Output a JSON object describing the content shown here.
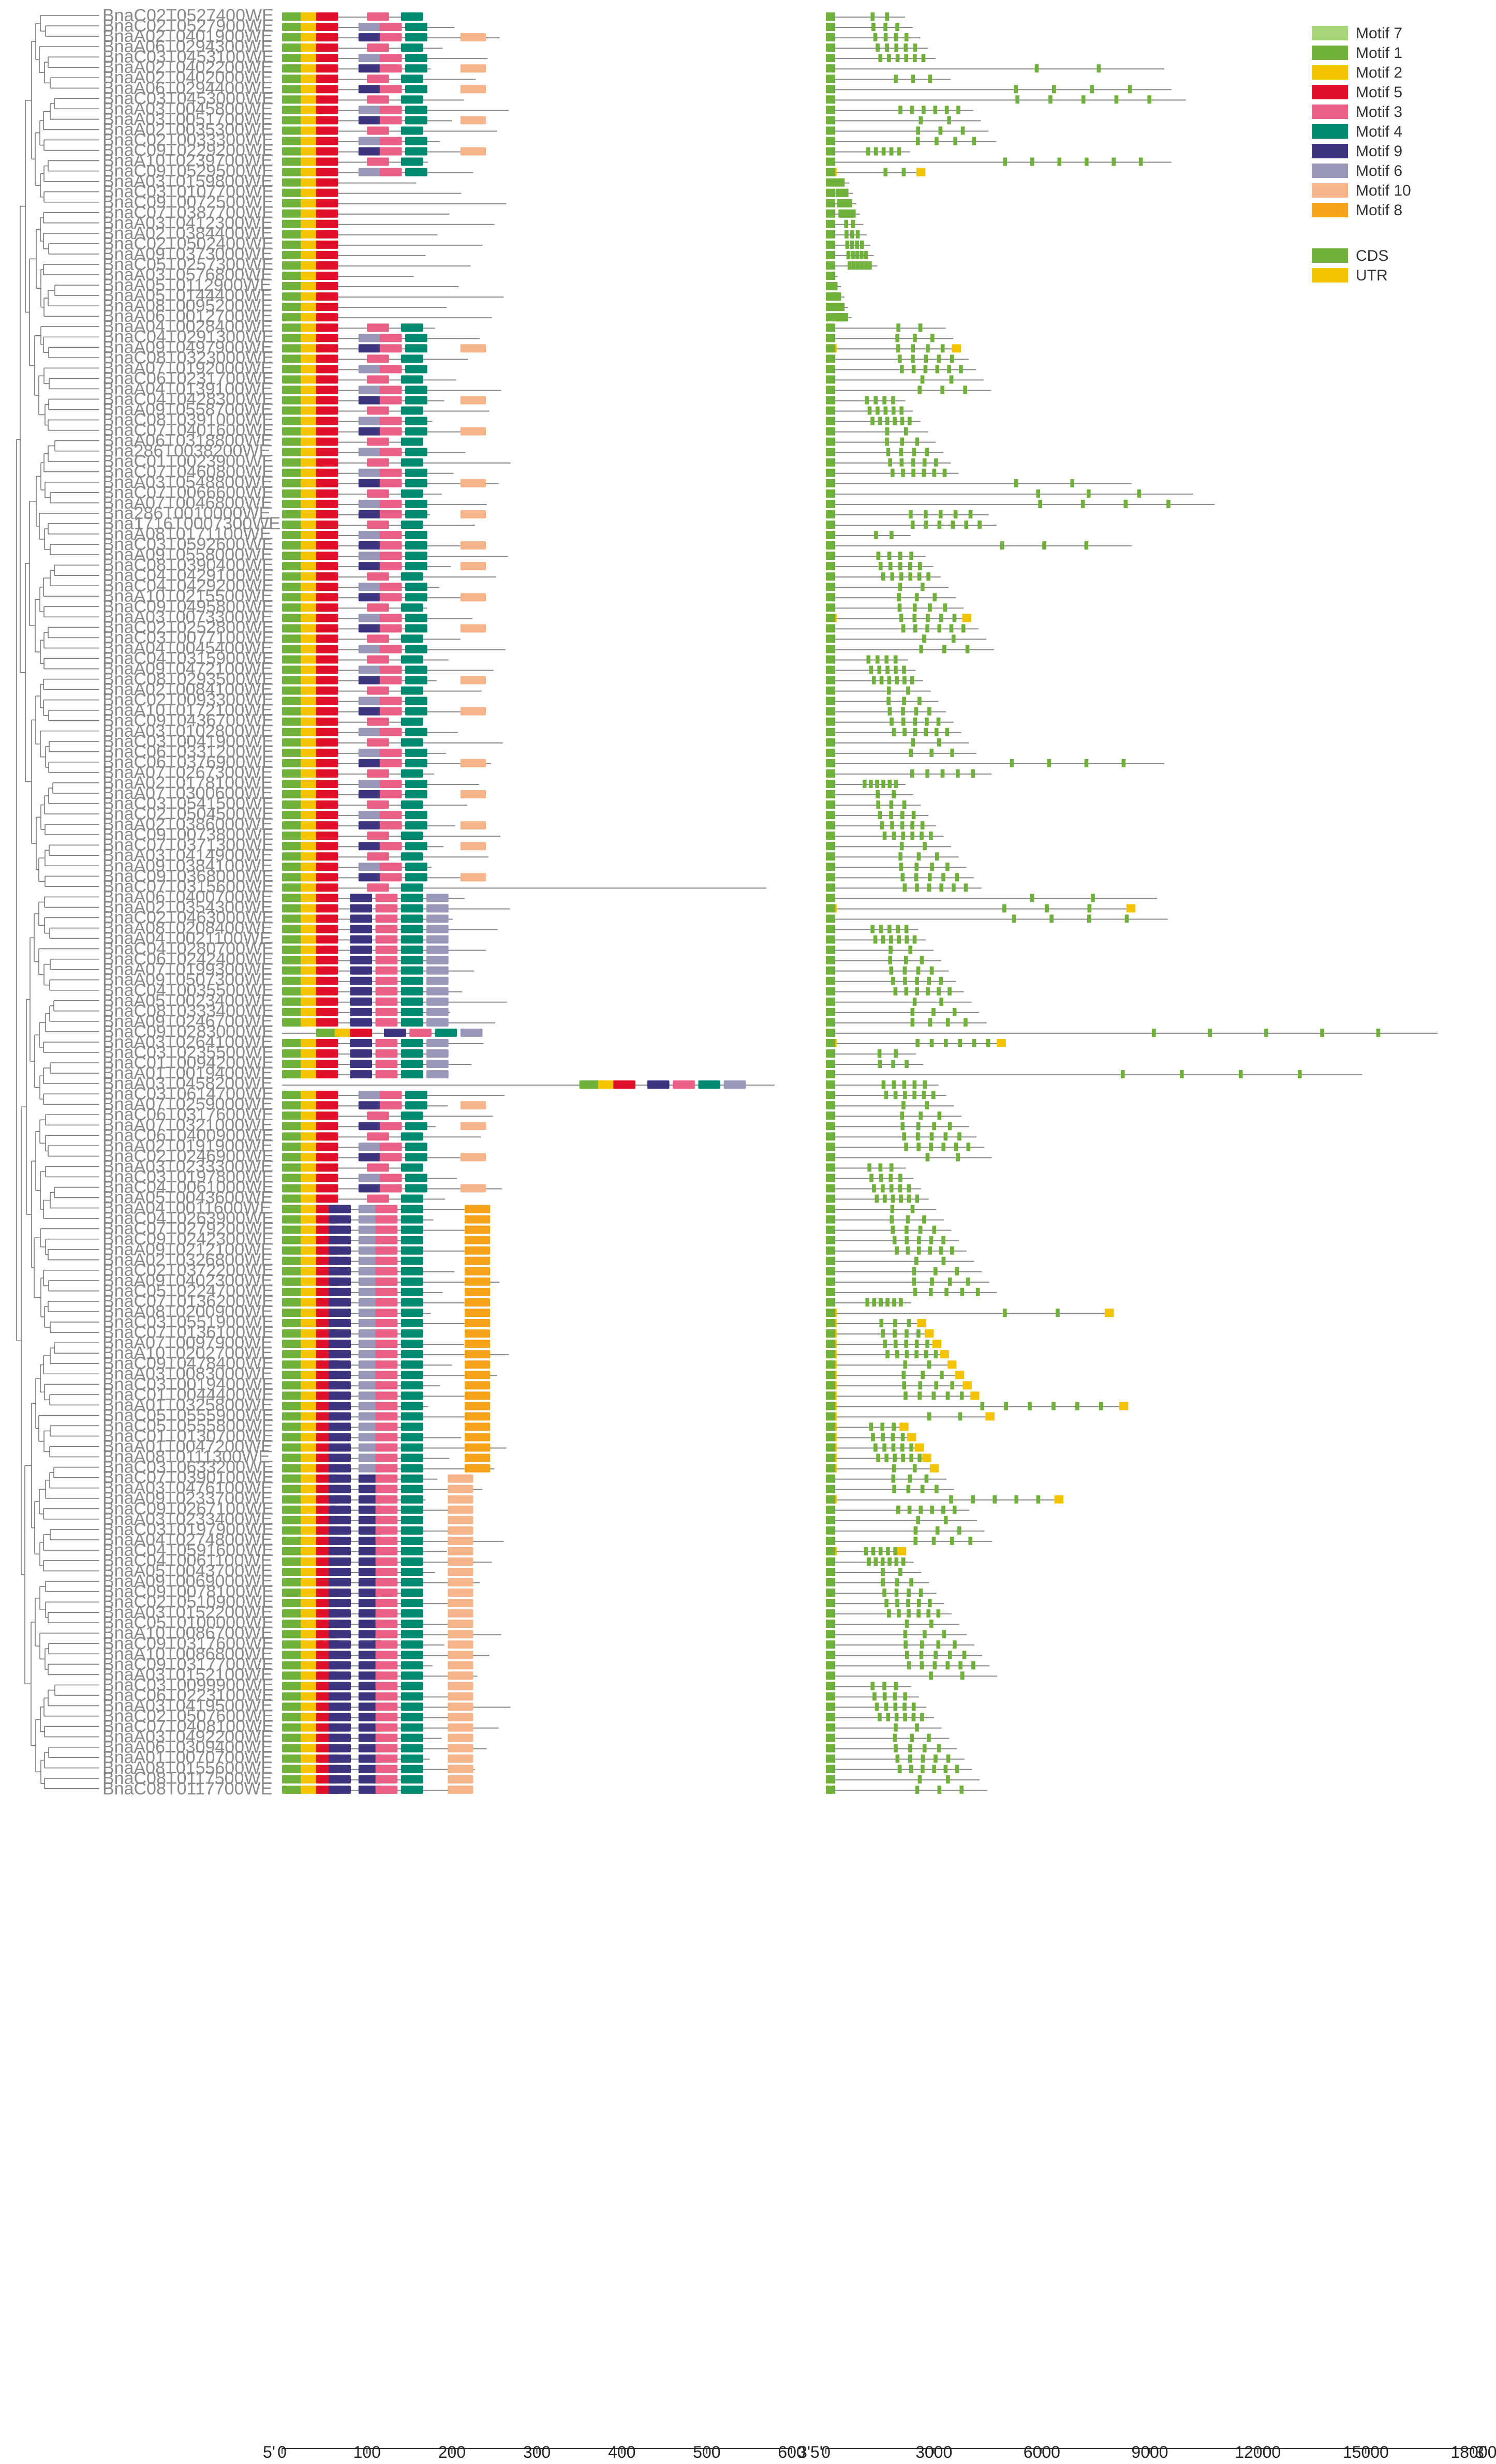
{
  "figure": {
    "domain_note": "Phylogenetic tree with conserved motif and gene structure diagrams",
    "end_labels": {
      "five_prime": "5'",
      "three_prime": "3'",
      "mid_label": "3'5'"
    }
  },
  "motif_axis": {
    "ticks": [
      "0",
      "100",
      "200",
      "300",
      "400",
      "500",
      "600"
    ],
    "max": 600
  },
  "gene_axis": {
    "ticks": [
      "0",
      "3000",
      "6000",
      "9000",
      "12000",
      "15000",
      "18000"
    ],
    "max": 18000
  },
  "motif_legend": [
    {
      "name": "Motif 7",
      "color": "#a9d67a"
    },
    {
      "name": "Motif 1",
      "color": "#70b13c"
    },
    {
      "name": "Motif 2",
      "color": "#f5c400"
    },
    {
      "name": "Motif 5",
      "color": "#e0102a"
    },
    {
      "name": "Motif 3",
      "color": "#ea5f86"
    },
    {
      "name": "Motif 4",
      "color": "#008a70"
    },
    {
      "name": "Motif 9",
      "color": "#3d3480"
    },
    {
      "name": "Motif 6",
      "color": "#9a98b8"
    },
    {
      "name": "Motif 10",
      "color": "#f6b48a"
    },
    {
      "name": "Motif 8",
      "color": "#f7a21b"
    }
  ],
  "structure_legend": [
    {
      "name": "CDS",
      "color": "#70b13c"
    },
    {
      "name": "UTR",
      "color": "#f5c400"
    }
  ],
  "genes": [
    "BnaC02T0527400WE",
    "BnaC02T0527900WE",
    "BnaA02T0401900WE",
    "BnaA06T0294300WE",
    "BnaC03T0453100WE",
    "BnaA02T0402200WE",
    "BnaA02T0402000WE",
    "BnaA06T0294400WE",
    "BnaC03T0453000WE",
    "BnaA03T0045800WE",
    "BnaA03T0051700WE",
    "BnaA02T0035300WE",
    "BnaC02T0033300WE",
    "BnaC09T0229200WE",
    "BnaA10T0239700WE",
    "BnaC09T0529500WE",
    "BnaA03T0159800WE",
    "BnaC03T0107700WE",
    "BnaC09T0072500WE",
    "BnaC07T0387700WE",
    "BnaA03T0412300WE",
    "BnaA02T0384400WE",
    "BnaC02T0502400WE",
    "BnaA09T0373000WE",
    "BnaC05T0257300WE",
    "BnaA03T0576800WE",
    "BnaA05T0112900WE",
    "BnaA05T0144400WE",
    "BnaA08T0095200WE",
    "BnaA06T0012700WE",
    "BnaA04T0028400WE",
    "BnaC04T0291300WE",
    "BnaA09T0497900WE",
    "BnaC08T0323000WE",
    "BnaA07T0192000WE",
    "BnaC06T0231700WE",
    "BnaA04T0139100WE",
    "BnaC04T0428300WE",
    "BnaA09T0558700WE",
    "BnaC08T0391000WE",
    "BnaC07T0401600WE",
    "BnaA06T0318800WE",
    "Bna286T0038200WE",
    "BnaC01T0023900WE",
    "BnaC07T0460800WE",
    "BnaA03T0548800WE",
    "BnaC07T0066600WE",
    "BnaA07T0046800WE",
    "Bna286T0010000WE",
    "Bna1716T0007300WE",
    "BnaA08T0171100WE",
    "BnaC03T0592600WE",
    "BnaA09T0558000WE",
    "BnaC08T0390400WE",
    "BnaC04T0429100WE",
    "BnaC04T0429200WE",
    "BnaA10T0215500WE",
    "BnaC09T0495800WE",
    "BnaA03T0073300WE",
    "BnaC02T0252800WE",
    "BnaC03T0077100WE",
    "BnaA04T0045400WE",
    "BnaC04T0315900WE",
    "BnaA09T0472100WE",
    "BnaC08T0293500WE",
    "BnaA02T0084100WE",
    "BnaC02T0093300WE",
    "BnaA10T0172100WE",
    "BnaC09T0436700WE",
    "BnaA03T0102800WE",
    "BnaC03T0041900WE",
    "BnaC06T0331200WE",
    "BnaC06T0376900WE",
    "BnaA07T0267300WE",
    "BnaA02T0178100WE",
    "BnaA07T0300600WE",
    "BnaC03T0541500WE",
    "BnaC02T0504500WE",
    "BnaA02T0386000WE",
    "BnaC09T0073800WE",
    "BnaC07T0371300WE",
    "BnaA03T0414900WE",
    "BnaA09T0384100WE",
    "BnaC09T0368000WE",
    "BnaC07T0315600WE",
    "BnaA06T0400700WE",
    "BnaA02T0354300WE",
    "BnaC02T0463000WE",
    "BnaA08T0208400WE",
    "BnaA04T0021100WE",
    "BnaC04T0280700WE",
    "BnaC06T0242400WE",
    "BnaA07T0199300WE",
    "BnaA09T0507300WE",
    "BnaC04T0035500WE",
    "BnaA05T0023400WE",
    "BnaC08T0333400WE",
    "BnaA09T0246700WE",
    "BnaC09T0283000WE",
    "BnaA03T0264100WE",
    "BnaC03T0235500WE",
    "BnaC01T0094200WE",
    "BnaA01T0019400WE",
    "BnaA03T0458200WE",
    "BnaC03T0614700WE",
    "BnaA07T0259000WE",
    "BnaC06T0317600WE",
    "BnaA07T0321000WE",
    "BnaC06T0400900WE",
    "BnaA02T0191900WE",
    "BnaC02T0246900WE",
    "BnaA03T0233300WE",
    "BnaC03T0197800WE",
    "BnaC04T0061000WE",
    "BnaA05T0043600WE",
    "BnaA04T0011600WE",
    "BnaC04T0263900WE",
    "BnaC07T0279200WE",
    "BnaC09T0242300WE",
    "BnaA09T0212100WE",
    "BnaA02T0326800WE",
    "BnaC02T0372200WE",
    "BnaA09T0402300WE",
    "BnaC05T0224700WE",
    "BnaC07T0136200WE",
    "BnaA08T0200900WE",
    "BnaC03T0551900WE",
    "BnaC07T0136100WE",
    "BnaA07T0097900WE",
    "BnaA10T0202700WE",
    "BnaC09T0478400WE",
    "BnaA03T0083000WE",
    "BnaC03T0019400WE",
    "BnaC01T0044400WE",
    "BnaA01T0325800WE",
    "BnaC05T0555900WE",
    "BnaC05T0555800WE",
    "BnaC01T0130700WE",
    "BnaA01T0047200WE",
    "BnaA08T0111300WE",
    "BnaC03T0633200WE",
    "BnaC07T0390100WE",
    "BnaA03T0476100WE",
    "BnaA09T0233700WE",
    "BnaC09T0267100WE",
    "BnaA03T0233400WE",
    "BnaC03T0197900WE",
    "BnaA04T0274800WE",
    "BnaC04T0591600WE",
    "BnaC04T0061100WE",
    "BnaA05T0043700WE",
    "BnaA09T0069000WE",
    "BnaC09T0078100WE",
    "BnaC02T0510900WE",
    "BnaA03T0152200WE",
    "BnaC05T0100000WE",
    "BnaA10T0086700WE",
    "BnaC09T0317600WE",
    "BnaA10T0086800WE",
    "BnaC09T0317700WE",
    "BnaA03T0152100WE",
    "BnaC03T0099900WE",
    "BnaC06T0223100WE",
    "BnaA03T0419500WE",
    "BnaC02T0507600WE",
    "BnaC07T0408100WE",
    "BnaA03T0492200WE",
    "BnaA06T0309400WE",
    "BnaA01T0070700WE",
    "BnaA08T0155600WE",
    "BnaC08T0117500WE",
    "BnaC08T0117700WE"
  ]
}
